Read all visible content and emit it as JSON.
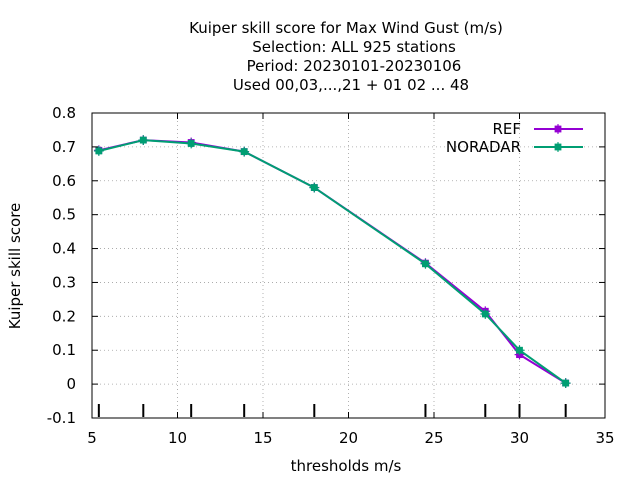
{
  "chart_data": {
    "type": "line",
    "title_lines": [
      "Kuiper skill score  for Max Wind Gust (m/s)",
      "Selection: ALL    925 stations",
      "Period: 20230101-20230106",
      "Used  00,03,...,21  + 01 02 ... 48"
    ],
    "xlabel": "thresholds m/s",
    "ylabel": "Kuiper skill score",
    "xlim": [
      5,
      35
    ],
    "ylim": [
      -0.1,
      0.8
    ],
    "xticks": [
      5,
      10,
      15,
      20,
      25,
      30,
      35
    ],
    "yticks": [
      -0.1,
      0,
      0.1,
      0.2,
      0.3,
      0.4,
      0.5,
      0.6,
      0.7,
      0.8
    ],
    "xtick_labels": [
      "5",
      "10",
      "15",
      "20",
      "25",
      "30",
      "35"
    ],
    "ytick_labels": [
      "-0.1",
      "0",
      "0.1",
      "0.2",
      "0.3",
      "0.4",
      "0.5",
      "0.6",
      "0.7",
      "0.8"
    ],
    "grid": true,
    "legend_position": "top-right",
    "threshold_marks": [
      5.4,
      8.0,
      10.8,
      13.9,
      18.0,
      24.5,
      28.0,
      30.0,
      32.7
    ],
    "series": [
      {
        "name": "REF",
        "color": "#9400d3",
        "x": [
          5.4,
          8.0,
          10.8,
          13.9,
          18.0,
          24.5,
          28.0,
          30.0,
          32.7
        ],
        "y": [
          0.69,
          0.72,
          0.713,
          0.686,
          0.58,
          0.357,
          0.215,
          0.087,
          0.003
        ]
      },
      {
        "name": "NORADAR",
        "color": "#009e73",
        "x": [
          5.4,
          8.0,
          10.8,
          13.9,
          18.0,
          24.5,
          28.0,
          30.0,
          32.7
        ],
        "y": [
          0.688,
          0.72,
          0.71,
          0.686,
          0.58,
          0.355,
          0.207,
          0.1,
          0.003
        ]
      }
    ]
  }
}
